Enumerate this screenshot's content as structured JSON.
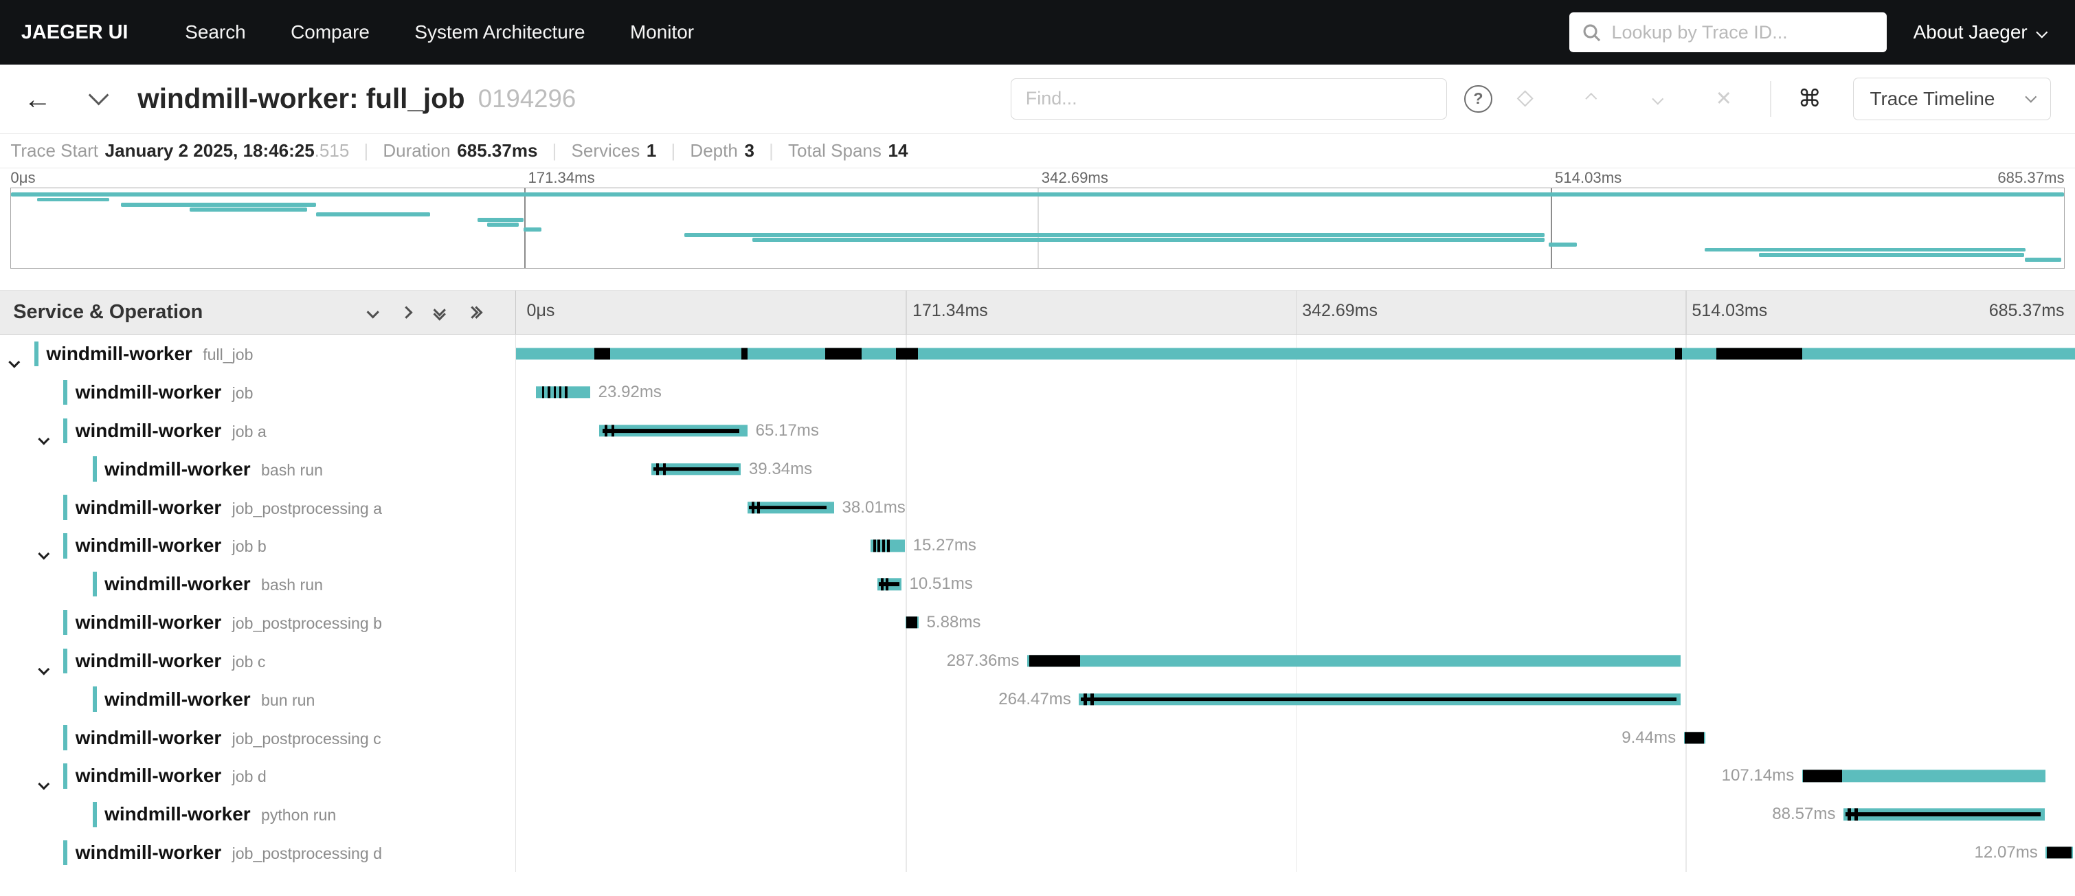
{
  "navbar": {
    "brand": "JAEGER UI",
    "items": [
      {
        "label": "Search"
      },
      {
        "label": "Compare"
      },
      {
        "label": "System Architecture"
      },
      {
        "label": "Monitor"
      }
    ],
    "search_placeholder": "Lookup by Trace ID...",
    "about_label": "About Jaeger"
  },
  "trace_header": {
    "title": "windmill-worker: full_job",
    "trace_id": "0194296",
    "find_placeholder": "Find...",
    "help_glyph": "?",
    "cmd_glyph": "⌘",
    "close_glyph": "✕",
    "view_select_label": "Trace Timeline"
  },
  "summary": {
    "trace_start_label": "Trace Start",
    "trace_start_main": "January 2 2025, 18:46:25",
    "trace_start_fraction": ".515",
    "duration_label": "Duration",
    "duration_value": "685.37ms",
    "services_label": "Services",
    "services_value": "1",
    "depth_label": "Depth",
    "depth_value": "3",
    "total_spans_label": "Total Spans",
    "total_spans_value": "14"
  },
  "timeline": {
    "left_header": "Service & Operation",
    "total_ms": 685.37,
    "ticks": [
      "0μs",
      "171.34ms",
      "342.69ms",
      "514.03ms",
      "685.37ms"
    ]
  },
  "colors": {
    "accent": "#5cbdbd",
    "mark": "#000000"
  },
  "spans": [
    {
      "service": "windmill-worker",
      "operation": "full_job",
      "depth": 0,
      "expandable": true,
      "start_ms": 0,
      "duration_ms": 685.37,
      "label": "",
      "label_side": "none",
      "marks": [
        [
          34.3,
          7,
          1
        ],
        [
          98.9,
          3,
          1
        ],
        [
          136,
          15.8,
          1
        ],
        [
          166.9,
          9.9,
          1
        ],
        [
          509.5,
          3,
          1
        ],
        [
          527.6,
          37.8,
          1
        ]
      ]
    },
    {
      "service": "windmill-worker",
      "operation": "job",
      "depth": 1,
      "expandable": false,
      "start_ms": 8.7,
      "duration_ms": 23.92,
      "label": "23.92ms",
      "label_side": "right",
      "marks": [
        [
          11.5,
          1,
          1
        ],
        [
          14,
          1,
          1
        ],
        [
          16.5,
          1,
          1
        ],
        [
          19,
          1,
          1
        ],
        [
          21.5,
          1,
          1
        ]
      ]
    },
    {
      "service": "windmill-worker",
      "operation": "job a",
      "depth": 1,
      "expandable": true,
      "start_ms": 36.6,
      "duration_ms": 65.17,
      "label": "65.17ms",
      "label_side": "right",
      "marks": [
        [
          38,
          60,
          0
        ],
        [
          39,
          1.2,
          1
        ],
        [
          42,
          1.2,
          1
        ]
      ]
    },
    {
      "service": "windmill-worker",
      "operation": "bash run",
      "depth": 2,
      "expandable": false,
      "start_ms": 59.5,
      "duration_ms": 39.34,
      "label": "39.34ms",
      "label_side": "right",
      "marks": [
        [
          60.3,
          37.5,
          0
        ],
        [
          61.5,
          1.2,
          1
        ],
        [
          64.5,
          1.2,
          1
        ]
      ]
    },
    {
      "service": "windmill-worker",
      "operation": "job_postprocessing a",
      "depth": 1,
      "expandable": false,
      "start_ms": 101.8,
      "duration_ms": 38.01,
      "label": "38.01ms",
      "label_side": "right",
      "marks": [
        [
          102.5,
          34,
          0
        ],
        [
          103.5,
          1.2,
          1
        ],
        [
          106,
          1.2,
          1
        ]
      ]
    },
    {
      "service": "windmill-worker",
      "operation": "job b",
      "depth": 1,
      "expandable": true,
      "start_ms": 155.7,
      "duration_ms": 15.27,
      "label": "15.27ms",
      "label_side": "right",
      "marks": [
        [
          157,
          1.2,
          1
        ],
        [
          159,
          1.2,
          1
        ],
        [
          161,
          1.2,
          1
        ],
        [
          163,
          1.2,
          1
        ]
      ]
    },
    {
      "service": "windmill-worker",
      "operation": "bash run",
      "depth": 2,
      "expandable": false,
      "start_ms": 158.9,
      "duration_ms": 10.51,
      "label": "10.51ms",
      "label_side": "right",
      "marks": [
        [
          159.6,
          9,
          0
        ],
        [
          160.5,
          1.2,
          1
        ],
        [
          162.5,
          1.2,
          1
        ]
      ]
    },
    {
      "service": "windmill-worker",
      "operation": "job_postprocessing b",
      "depth": 1,
      "expandable": false,
      "start_ms": 171.1,
      "duration_ms": 5.88,
      "label": "5.88ms",
      "label_side": "right",
      "marks": [
        [
          171.4,
          5,
          1
        ]
      ]
    },
    {
      "service": "windmill-worker",
      "operation": "job c",
      "depth": 1,
      "expandable": true,
      "start_ms": 224.7,
      "duration_ms": 287.36,
      "label": "287.36ms",
      "label_side": "left",
      "marks": [
        [
          225.5,
          22.5,
          1
        ]
      ]
    },
    {
      "service": "windmill-worker",
      "operation": "bun run",
      "depth": 2,
      "expandable": false,
      "start_ms": 247.5,
      "duration_ms": 264.47,
      "label": "264.47ms",
      "label_side": "left",
      "marks": [
        [
          248.3,
          262,
          0
        ],
        [
          249.5,
          1.5,
          1
        ],
        [
          252.5,
          1.5,
          1
        ]
      ]
    },
    {
      "service": "windmill-worker",
      "operation": "job_postprocessing c",
      "depth": 1,
      "expandable": false,
      "start_ms": 513.4,
      "duration_ms": 9.44,
      "label": "9.44ms",
      "label_side": "left",
      "marks": [
        [
          513.7,
          8.5,
          1
        ]
      ]
    },
    {
      "service": "windmill-worker",
      "operation": "job d",
      "depth": 1,
      "expandable": true,
      "start_ms": 565.4,
      "duration_ms": 107.14,
      "label": "107.14ms",
      "label_side": "left",
      "marks": [
        [
          565.9,
          17,
          1
        ]
      ]
    },
    {
      "service": "windmill-worker",
      "operation": "python run",
      "depth": 2,
      "expandable": false,
      "start_ms": 583.6,
      "duration_ms": 88.57,
      "label": "88.57ms",
      "label_side": "left",
      "marks": [
        [
          584.4,
          86,
          0
        ],
        [
          585.5,
          1.5,
          1
        ],
        [
          588.5,
          1.5,
          1
        ]
      ]
    },
    {
      "service": "windmill-worker",
      "operation": "job_postprocessing d",
      "depth": 1,
      "expandable": false,
      "start_ms": 672.5,
      "duration_ms": 12.07,
      "label": "12.07ms",
      "label_side": "left",
      "marks": [
        [
          672.9,
          11,
          1
        ]
      ]
    }
  ]
}
